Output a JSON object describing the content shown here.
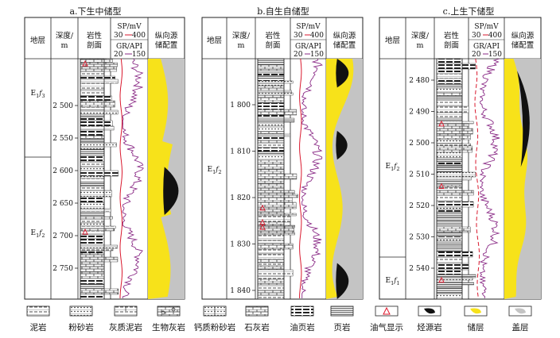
{
  "panels": [
    {
      "title": "a.下生中储型",
      "headers": {
        "strata": "地层",
        "depth": "深度/",
        "depth_unit": "m",
        "litho1": "岩性",
        "litho2": "剖面",
        "sp_label": "SP/mV",
        "sp_min": "30",
        "sp_max": "400",
        "gr_label": "GR/API",
        "gr_min": "20",
        "gr_max": "150",
        "cfg1": "纵向源",
        "cfg2": "储配置"
      },
      "strata": [
        {
          "main": "E",
          "sub": "1",
          "sup": "f",
          "sub2": "3"
        },
        {
          "main": "E",
          "sub": "1",
          "sup": "f",
          "sub2": "2"
        }
      ],
      "depth_ticks": [
        "2 500",
        "2 550",
        "2 600",
        "2 650",
        "2 700",
        "2 750"
      ]
    },
    {
      "title": "b.自生自储型",
      "headers": {
        "strata": "地层",
        "depth": "深度/",
        "depth_unit": "m",
        "litho1": "岩性",
        "litho2": "剖面",
        "sp_label": "SP/mV",
        "sp_min": "30",
        "sp_max": "400",
        "gr_label": "GR/API",
        "gr_min": "20",
        "gr_max": "150",
        "cfg1": "纵向源",
        "cfg2": "储配置"
      },
      "strata": [
        {
          "main": "E",
          "sub": "1",
          "sup": "f",
          "sub2": "2"
        }
      ],
      "depth_ticks": [
        "1 800",
        "1 810",
        "1 820",
        "1 830",
        "1 840"
      ]
    },
    {
      "title": "c.上生下储型",
      "headers": {
        "strata": "地层",
        "depth": "深度/",
        "depth_unit": "m",
        "litho1": "岩性",
        "litho2": "剖面",
        "sp_label": "SP/mV",
        "sp_min": "30",
        "sp_max": "400",
        "gr_label": "GR/API",
        "gr_min": "20",
        "gr_max": "150",
        "cfg1": "纵向源",
        "cfg2": "储配置"
      },
      "strata": [
        {
          "main": "E",
          "sub": "1",
          "sup": "f",
          "sub2": "2"
        },
        {
          "main": "E",
          "sub": "1",
          "sup": "f",
          "sub2": "1"
        }
      ],
      "depth_ticks": [
        "2 480",
        "2 490",
        "2 500",
        "2 510",
        "2 520",
        "2 530",
        "2 540"
      ]
    }
  ],
  "legend": [
    {
      "label": "泥岩",
      "pattern": "mudstone"
    },
    {
      "label": "粉砂岩",
      "pattern": "siltstone"
    },
    {
      "label": "灰质泥岩",
      "pattern": "calc-mudstone"
    },
    {
      "label": "生物灰岩",
      "pattern": "bio-limestone"
    },
    {
      "label": "钙质粉砂岩",
      "pattern": "calc-siltstone"
    },
    {
      "label": "石灰岩",
      "pattern": "limestone"
    },
    {
      "label": "油页岩",
      "pattern": "oil-shale"
    },
    {
      "label": "页岩",
      "pattern": "shale"
    },
    {
      "label": "油气显示",
      "pattern": "oil-show"
    },
    {
      "label": "烃源岩",
      "pattern": "source-rock"
    },
    {
      "label": "储层",
      "pattern": "reservoir"
    },
    {
      "label": "盖层",
      "pattern": "caprock"
    }
  ],
  "colors": {
    "sp_curve": "#d9182d",
    "gr_curve": "#8a2a86",
    "reservoir": "#f7e21a",
    "source_rock": "#111111",
    "caprock": "#c4c4c4",
    "oil_show": "#e0182d"
  }
}
